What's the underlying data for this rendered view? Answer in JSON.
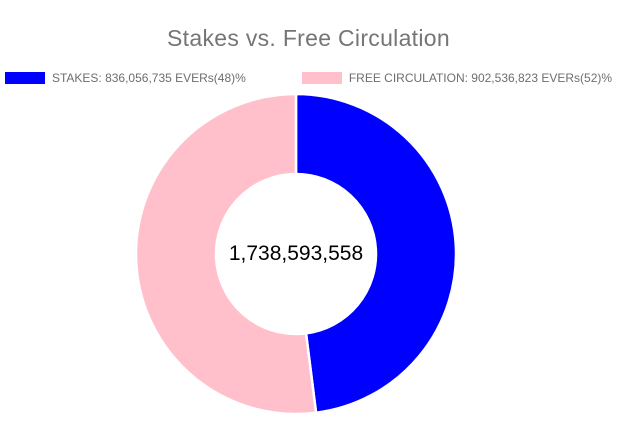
{
  "page": {
    "background": "#ffffff"
  },
  "chart_data": {
    "type": "pie",
    "subtype": "doughnut",
    "title": "Stakes vs. Free Circulation",
    "legend_position": "top",
    "cutout_percent": 50,
    "border_color": "#ffffff",
    "center_total_label": "1,738,593,558",
    "total": 1738593558,
    "start_angle_deg": 0,
    "direction": "clockwise",
    "segments": [
      {
        "name": "STAKES",
        "value": 836056735,
        "percent": 48,
        "color": "#0000ff",
        "legend_label": "STAKES: 836,056,735 EVERs(48)%"
      },
      {
        "name": "FREE CIRCULATION",
        "value": 902536823,
        "percent": 52,
        "color": "#ffc0cb",
        "legend_label": "FREE CIRCULATION: 902,536,823 EVERs(52)%"
      }
    ]
  },
  "styles": {
    "title_color": "#757575",
    "legend_text_color": "#6e6e6e",
    "center_text_color": "#000000"
  }
}
